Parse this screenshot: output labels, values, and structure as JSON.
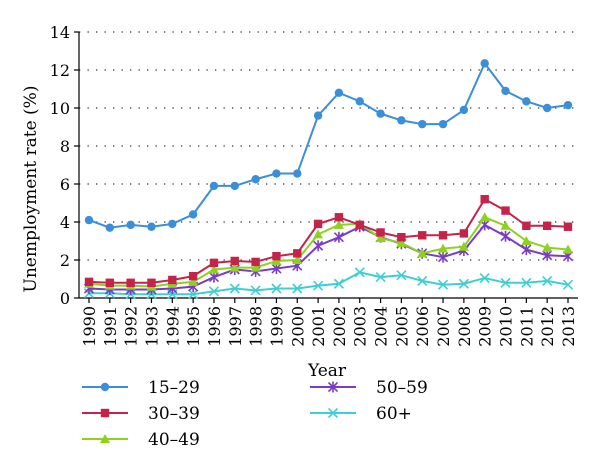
{
  "chart_data": {
    "type": "line",
    "title": "",
    "xlabel": "Year",
    "ylabel": "Unemployment rate (%)",
    "ylim": [
      0,
      14
    ],
    "yticks": [
      "0",
      "2",
      "4",
      "6",
      "8",
      "10",
      "12",
      "14"
    ],
    "grid": "horizontal dotted",
    "legend_position": "bottom",
    "categories": [
      "1990",
      "1991",
      "1992",
      "1993",
      "1994",
      "1995",
      "1996",
      "1997",
      "1998",
      "1999",
      "2000",
      "2001",
      "2002",
      "2003",
      "2004",
      "2005",
      "2006",
      "2007",
      "2008",
      "2009",
      "2010",
      "2011",
      "2012",
      "2013"
    ],
    "series": [
      {
        "name": "15–29",
        "color": "#3b8fd8",
        "marker": "circle",
        "values": [
          4.1,
          3.7,
          3.85,
          3.75,
          3.9,
          4.4,
          5.9,
          5.9,
          6.25,
          6.55,
          6.55,
          9.6,
          10.8,
          10.35,
          9.7,
          9.35,
          9.15,
          9.15,
          9.9,
          12.35,
          10.9,
          10.35,
          10.0,
          10.15
        ]
      },
      {
        "name": "30–39",
        "color": "#c4244a",
        "marker": "square",
        "values": [
          0.85,
          0.8,
          0.8,
          0.8,
          0.95,
          1.15,
          1.85,
          1.95,
          1.9,
          2.2,
          2.35,
          3.9,
          4.25,
          3.85,
          3.45,
          3.2,
          3.3,
          3.3,
          3.4,
          5.2,
          4.6,
          3.8,
          3.8,
          3.75
        ]
      },
      {
        "name": "40–49",
        "color": "#8ed11f",
        "marker": "triangle",
        "values": [
          0.75,
          0.65,
          0.65,
          0.6,
          0.75,
          0.85,
          1.5,
          1.6,
          1.6,
          1.95,
          2.0,
          3.35,
          3.85,
          3.9,
          3.15,
          2.9,
          2.35,
          2.6,
          2.7,
          4.25,
          3.8,
          3.0,
          2.65,
          2.55
        ]
      },
      {
        "name": "50–59",
        "color": "#7a3cc4",
        "marker": "star",
        "values": [
          0.5,
          0.45,
          0.45,
          0.45,
          0.5,
          0.6,
          1.1,
          1.5,
          1.4,
          1.55,
          1.7,
          2.75,
          3.2,
          3.75,
          3.2,
          2.85,
          2.35,
          2.15,
          2.5,
          3.85,
          3.25,
          2.55,
          2.25,
          2.2
        ]
      },
      {
        "name": "60+",
        "color": "#3fcfd3",
        "marker": "x",
        "values": [
          0.25,
          0.25,
          0.2,
          0.2,
          0.2,
          0.2,
          0.35,
          0.5,
          0.4,
          0.5,
          0.5,
          0.65,
          0.75,
          1.35,
          1.1,
          1.2,
          0.9,
          0.7,
          0.75,
          1.05,
          0.8,
          0.8,
          0.9,
          0.7
        ]
      }
    ]
  }
}
